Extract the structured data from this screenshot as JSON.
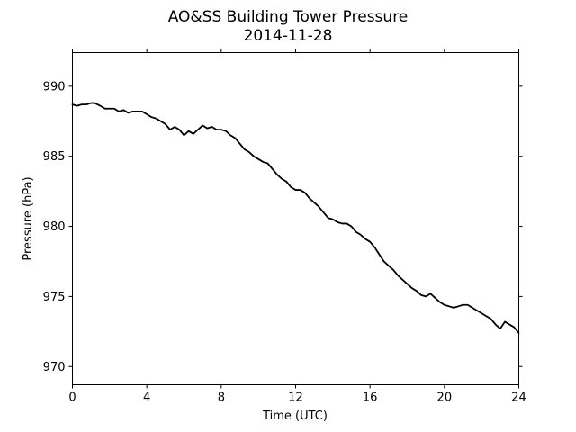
{
  "chart_data": {
    "type": "line",
    "title": "AO&SS Building Tower Pressure",
    "subtitle": "2014-11-28",
    "xlabel": "Time (UTC)",
    "ylabel": "Pressure (hPa)",
    "xlim": [
      0,
      24
    ],
    "ylim": [
      968.7,
      992.4
    ],
    "xticks": [
      0,
      4,
      8,
      12,
      16,
      20,
      24
    ],
    "yticks": [
      970,
      975,
      980,
      985,
      990
    ],
    "grid": false,
    "line_color": "#000000",
    "series": [
      {
        "x": [
          0,
          0.25,
          0.5,
          0.75,
          1.0,
          1.2,
          1.5,
          1.75,
          2.0,
          2.25,
          2.5,
          2.75,
          3.0,
          3.25,
          3.5,
          3.75,
          4.0,
          4.25,
          4.5,
          4.75,
          5.0,
          5.25,
          5.5,
          5.75,
          6.0,
          6.25,
          6.5,
          6.75,
          7.0,
          7.25,
          7.5,
          7.75,
          8.0,
          8.25,
          8.5,
          8.75,
          9.0,
          9.25,
          9.5,
          9.75,
          10.0,
          10.25,
          10.5,
          10.75,
          11.0,
          11.25,
          11.5,
          11.75,
          12.0,
          12.25,
          12.5,
          12.75,
          13.0,
          13.25,
          13.5,
          13.75,
          14.0,
          14.25,
          14.5,
          14.75,
          15.0,
          15.25,
          15.5,
          15.75,
          16.0,
          16.25,
          16.5,
          16.75,
          17.0,
          17.25,
          17.5,
          17.75,
          18.0,
          18.25,
          18.5,
          18.75,
          19.0,
          19.25,
          19.5,
          19.75,
          20.0,
          20.25,
          20.5,
          20.75,
          21.0,
          21.25,
          21.5,
          21.75,
          22.0,
          22.25,
          22.5,
          22.75,
          23.0,
          23.25,
          23.5,
          23.75,
          24.0
        ],
        "y": [
          988.7,
          988.6,
          988.7,
          988.7,
          988.8,
          988.8,
          988.6,
          988.4,
          988.4,
          988.4,
          988.2,
          988.3,
          988.1,
          988.2,
          988.2,
          988.2,
          988.0,
          987.8,
          987.7,
          987.5,
          987.3,
          986.9,
          987.1,
          986.9,
          986.5,
          986.8,
          986.6,
          986.9,
          987.2,
          987.0,
          987.1,
          986.9,
          986.9,
          986.8,
          986.5,
          986.3,
          985.9,
          985.5,
          985.3,
          985.0,
          984.8,
          984.6,
          984.5,
          984.1,
          983.7,
          983.4,
          983.2,
          982.8,
          982.6,
          982.6,
          982.4,
          982.0,
          981.7,
          981.4,
          981.0,
          980.6,
          980.5,
          980.3,
          980.2,
          980.2,
          980.0,
          979.6,
          979.4,
          979.1,
          978.9,
          978.5,
          978.0,
          977.5,
          977.2,
          976.9,
          976.5,
          976.2,
          975.9,
          975.6,
          975.4,
          975.1,
          975.0,
          975.2,
          974.9,
          974.6,
          974.4,
          974.3,
          974.2,
          974.3,
          974.4,
          974.4,
          974.2,
          974.0,
          973.8,
          973.6,
          973.4,
          973.0,
          972.7,
          973.2,
          973.0,
          972.8,
          972.4
        ]
      }
    ]
  }
}
